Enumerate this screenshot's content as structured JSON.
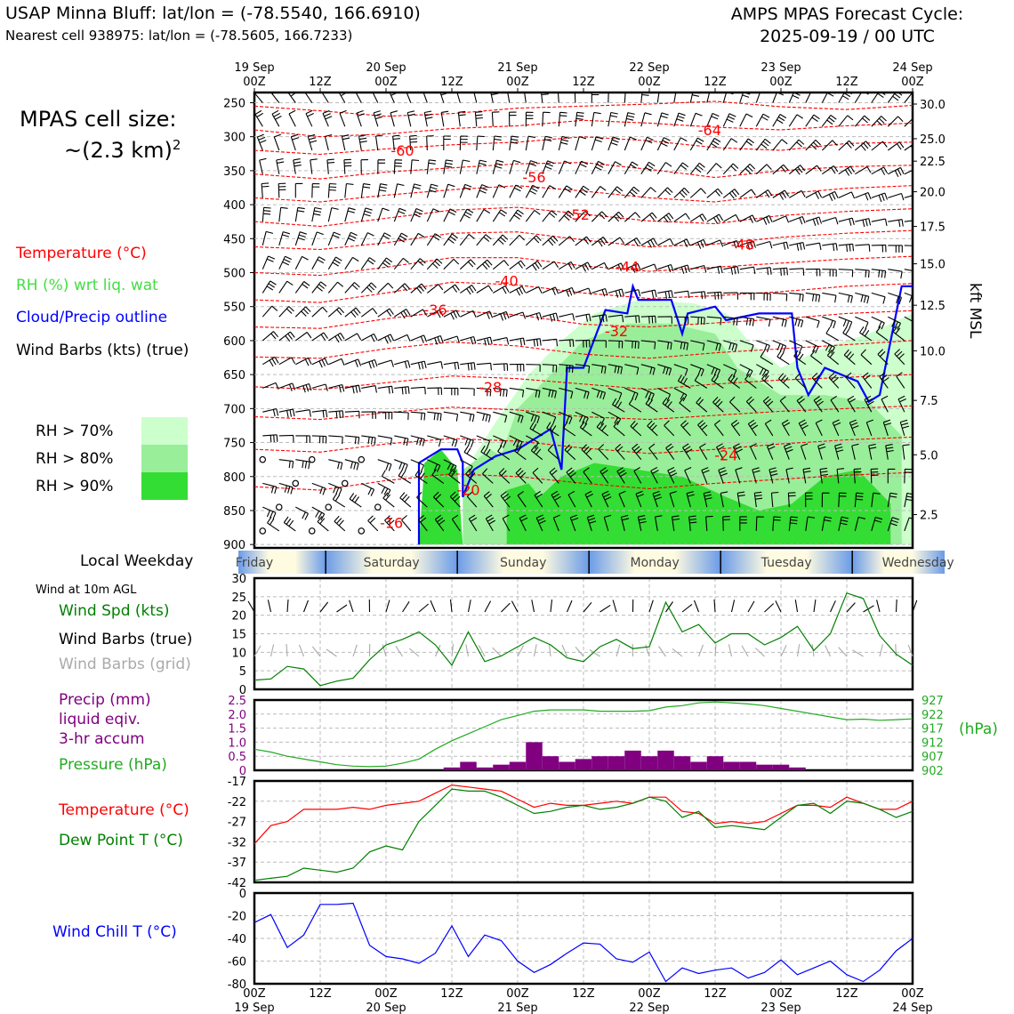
{
  "header": {
    "station": "USAP Minna Bluff: lat/lon = (-78.5540, 166.6910)",
    "nearest": "Nearest cell 938975: lat/lon = (-78.5605, 166.7233)",
    "cycle_line1": "AMPS MPAS Forecast Cycle:",
    "cycle_line2": "2025-09-19 / 00 UTC"
  },
  "cell_size": {
    "label": "MPAS cell size:",
    "value": "~(2.3 km)",
    "exponent": "2"
  },
  "legend": {
    "temperature": "Temperature (°C)",
    "rh": "RH (%) wrt liq. wat",
    "cloud": "Cloud/Precip outline",
    "barbs": "Wind Barbs (kts) (true)",
    "rh70": "RH > 70%",
    "rh80": "RH > 80%",
    "rh90": "RH > 90%"
  },
  "colors": {
    "temperature": "#ff0000",
    "rh": "#44dd44",
    "cloud": "#0000ff",
    "rh70": "#ccffcc",
    "rh80": "#99ee99",
    "rh90": "#33dd33",
    "precip": "#800080",
    "pressure": "#22aa22",
    "dewpoint": "#008000",
    "windchill": "#0000ff",
    "windspd": "#008000"
  },
  "time_axis": {
    "top_labels": [
      {
        "day": "19 Sep",
        "hour": "00Z"
      },
      {
        "day": "",
        "hour": "12Z"
      },
      {
        "day": "20 Sep",
        "hour": "00Z"
      },
      {
        "day": "",
        "hour": "12Z"
      },
      {
        "day": "21 Sep",
        "hour": "00Z"
      },
      {
        "day": "",
        "hour": "12Z"
      },
      {
        "day": "22 Sep",
        "hour": "00Z"
      },
      {
        "day": "",
        "hour": "12Z"
      },
      {
        "day": "23 Sep",
        "hour": "00Z"
      },
      {
        "day": "",
        "hour": "12Z"
      },
      {
        "day": "24 Sep",
        "hour": "00Z"
      }
    ],
    "hours": [
      0,
      12,
      24,
      36,
      48,
      60,
      72,
      84,
      96,
      108,
      120
    ]
  },
  "weekday": {
    "label": "Local Weekday",
    "days": [
      "Friday",
      "Saturday",
      "Sunday",
      "Monday",
      "Tuesday",
      "Wednesday"
    ]
  },
  "side_labels": {
    "wind_at": "Wind at 10m AGL",
    "wind_spd": "Wind Spd (kts)",
    "barbs_true": "Wind Barbs (true)",
    "barbs_grid": "Wind Barbs (grid)",
    "precip1": "Precip (mm)",
    "precip2": "liquid eqiv.",
    "precip3": "3-hr accum",
    "pressure": "Pressure (hPa)",
    "temp": "Temperature (°C)",
    "dew": "Dew Point T (°C)",
    "windchill": "Wind Chill T (°C)",
    "kft": "kft MSL",
    "hpa": "(hPa)"
  },
  "chart_data": [
    {
      "type": "heatmap",
      "name": "cross-section",
      "y_left_label": "",
      "y_left_ticks": [
        "250",
        "300",
        "350",
        "400",
        "450",
        "500",
        "550",
        "600",
        "650",
        "700",
        "750",
        "800",
        "850",
        "900"
      ],
      "y_left_values": [
        250,
        300,
        350,
        400,
        450,
        500,
        550,
        600,
        650,
        700,
        750,
        800,
        850,
        900
      ],
      "ylim_hpa": [
        235,
        905
      ],
      "y_right_label": "kft MSL",
      "y_right_ticks": [
        {
          "label": "30.0",
          "hpa": 252
        },
        {
          "label": "25.0",
          "hpa": 303
        },
        {
          "label": "22.5",
          "hpa": 336
        },
        {
          "label": "20.0",
          "hpa": 381
        },
        {
          "label": "17.5",
          "hpa": 432
        },
        {
          "label": "15.0",
          "hpa": 487
        },
        {
          "label": "12.5",
          "hpa": 548
        },
        {
          "label": "10.0",
          "hpa": 615
        },
        {
          "label": "7.5",
          "hpa": 688
        },
        {
          "label": "5.0",
          "hpa": 768
        },
        {
          "label": "2.5",
          "hpa": 856
        }
      ],
      "temperature_labels": [
        {
          "text": "-64",
          "hour": 83,
          "hpa": 290
        },
        {
          "text": "-60",
          "hour": 27,
          "hpa": 320
        },
        {
          "text": "-56",
          "hour": 51,
          "hpa": 359
        },
        {
          "text": "-52",
          "hour": 59,
          "hpa": 414
        },
        {
          "text": "-48",
          "hour": 89,
          "hpa": 458
        },
        {
          "text": "-44",
          "hour": 68,
          "hpa": 491
        },
        {
          "text": "-40",
          "hour": 46,
          "hpa": 512
        },
        {
          "text": "-36",
          "hour": 33,
          "hpa": 554
        },
        {
          "text": "-32",
          "hour": 66,
          "hpa": 586
        },
        {
          "text": "-28",
          "hour": 43,
          "hpa": 668
        },
        {
          "text": "-24",
          "hour": 86,
          "hpa": 768
        },
        {
          "text": "-20",
          "hour": 39,
          "hpa": 819
        },
        {
          "text": "-16",
          "hour": 25,
          "hpa": 868
        }
      ]
    },
    {
      "type": "line",
      "name": "surface-wind",
      "ylim": [
        0,
        30
      ],
      "y_ticks": [
        0,
        5,
        10,
        15,
        20,
        25,
        30
      ],
      "x": [
        0,
        3,
        6,
        9,
        12,
        15,
        18,
        21,
        24,
        27,
        30,
        33,
        36,
        39,
        42,
        45,
        48,
        51,
        54,
        57,
        60,
        63,
        66,
        69,
        72,
        75,
        78,
        81,
        84,
        87,
        90,
        93,
        96,
        99,
        102,
        105,
        108,
        111,
        114,
        117,
        120
      ],
      "series": [
        {
          "name": "Wind Spd (kts)",
          "values": [
            2.5,
            2.8,
            6.2,
            5.5,
            1.0,
            2.2,
            3.0,
            8.0,
            12.0,
            13.5,
            15.5,
            12.0,
            6.5,
            15.5,
            7.5,
            9.0,
            11.5,
            14.0,
            12.0,
            8.5,
            7.5,
            11.5,
            13.5,
            11.0,
            11.5,
            23.5,
            15.5,
            17.5,
            12.5,
            15.0,
            15.0,
            12.0,
            14.0,
            17.0,
            10.5,
            15.0,
            26.0,
            24.5,
            14.5,
            9.5,
            6.5
          ]
        }
      ]
    },
    {
      "type": "bar",
      "name": "precip-pressure",
      "ylim": [
        0,
        2.5
      ],
      "y_ticks": [
        "0",
        "0.5",
        "1.0",
        "1.5",
        "2.0",
        "2.5"
      ],
      "x": [
        36,
        39,
        42,
        45,
        48,
        51,
        54,
        57,
        60,
        63,
        66,
        69,
        72,
        75,
        78,
        81,
        84,
        87,
        90,
        93,
        96,
        99
      ],
      "series": [
        {
          "name": "Precip (mm)",
          "values": [
            0.1,
            0.3,
            0.1,
            0.2,
            0.3,
            1.0,
            0.5,
            0.3,
            0.4,
            0.5,
            0.5,
            0.7,
            0.5,
            0.7,
            0.5,
            0.3,
            0.5,
            0.3,
            0.3,
            0.2,
            0.2,
            0.1
          ]
        },
        {
          "name": "Pressure (hPa)",
          "x": [
            0,
            3,
            6,
            9,
            12,
            15,
            18,
            21,
            24,
            27,
            30,
            33,
            36,
            39,
            42,
            45,
            48,
            51,
            54,
            57,
            60,
            63,
            66,
            69,
            72,
            75,
            78,
            81,
            84,
            87,
            90,
            93,
            96,
            99,
            102,
            105,
            108,
            111,
            114,
            117,
            120
          ],
          "values": [
            909.5,
            908.5,
            907.0,
            906.0,
            905.0,
            904.0,
            903.5,
            903.3,
            903.5,
            904.5,
            906.0,
            909.5,
            912.5,
            915.0,
            917.5,
            920.0,
            921.5,
            923.0,
            923.5,
            923.5,
            923.5,
            923.0,
            923.0,
            923.0,
            923.2,
            924.5,
            925.0,
            926.0,
            926.3,
            926.0,
            925.6,
            925.0,
            924.0,
            923.0,
            922.0,
            921.0,
            920.0,
            920.2,
            919.8,
            920.0,
            920.3
          ]
        }
      ],
      "y_right_ticks": [
        "927",
        "922",
        "917",
        "912",
        "907",
        "902"
      ],
      "y_right_lim": [
        902,
        927
      ]
    },
    {
      "type": "line",
      "name": "temperature-dewpoint",
      "ylim": [
        -42,
        -17
      ],
      "y_ticks": [
        "-17",
        "-22",
        "-27",
        "-32",
        "-37",
        "-42"
      ],
      "x": [
        0,
        3,
        6,
        9,
        12,
        15,
        18,
        21,
        24,
        27,
        30,
        33,
        36,
        39,
        42,
        45,
        48,
        51,
        54,
        57,
        60,
        63,
        66,
        69,
        72,
        75,
        78,
        81,
        84,
        87,
        90,
        93,
        96,
        99,
        102,
        105,
        108,
        111,
        114,
        117,
        120
      ],
      "series": [
        {
          "name": "Temperature (°C)",
          "values": [
            -32.5,
            -28.0,
            -27.0,
            -24.0,
            -24.0,
            -24.0,
            -23.5,
            -24.0,
            -23.0,
            -22.5,
            -22.0,
            -20.0,
            -18.0,
            -18.5,
            -19.0,
            -19.5,
            -21.5,
            -23.5,
            -22.5,
            -23.0,
            -23.0,
            -22.5,
            -22.0,
            -22.5,
            -21.0,
            -21.0,
            -24.5,
            -25.0,
            -27.5,
            -27.0,
            -27.5,
            -27.0,
            -25.0,
            -23.0,
            -23.0,
            -23.5,
            -21.0,
            -22.5,
            -24.0,
            -24.0,
            -22.0
          ]
        },
        {
          "name": "Dew Point T (°C)",
          "values": [
            -41.5,
            -41.0,
            -40.5,
            -38.5,
            -39.0,
            -39.5,
            -38.5,
            -34.5,
            -33.0,
            -34.0,
            -27.0,
            -23.0,
            -19.0,
            -19.5,
            -19.5,
            -21.0,
            -23.0,
            -25.0,
            -24.5,
            -23.5,
            -23.0,
            -24.0,
            -23.5,
            -22.5,
            -21.0,
            -22.0,
            -26.0,
            -24.5,
            -28.5,
            -28.0,
            -28.5,
            -29.0,
            -26.0,
            -23.0,
            -22.5,
            -25.0,
            -22.0,
            -22.5,
            -24.0,
            -26.0,
            -24.5
          ]
        }
      ]
    },
    {
      "type": "line",
      "name": "wind-chill",
      "ylim": [
        -80,
        0
      ],
      "y_ticks": [
        "0",
        "-20",
        "-40",
        "-60",
        "-80"
      ],
      "x": [
        0,
        3,
        6,
        9,
        12,
        15,
        18,
        21,
        24,
        27,
        30,
        33,
        36,
        39,
        42,
        45,
        48,
        51,
        54,
        57,
        60,
        63,
        66,
        69,
        72,
        75,
        78,
        81,
        84,
        87,
        90,
        93,
        96,
        99,
        102,
        105,
        108,
        111,
        114,
        117,
        120
      ],
      "series": [
        {
          "name": "Wind Chill T (°C)",
          "values": [
            -26,
            -19,
            -48,
            -37,
            -10,
            -10,
            -9,
            -46,
            -56,
            -58,
            -62,
            -53,
            -29,
            -56,
            -37,
            -42,
            -60,
            -70,
            -63,
            -53,
            -44,
            -45,
            -58,
            -61,
            -52,
            -78,
            -66,
            -71,
            -68,
            -66,
            -75,
            -70,
            -59,
            -72,
            -66,
            -60,
            -72,
            -78,
            -68,
            -51,
            -40
          ]
        }
      ]
    }
  ]
}
